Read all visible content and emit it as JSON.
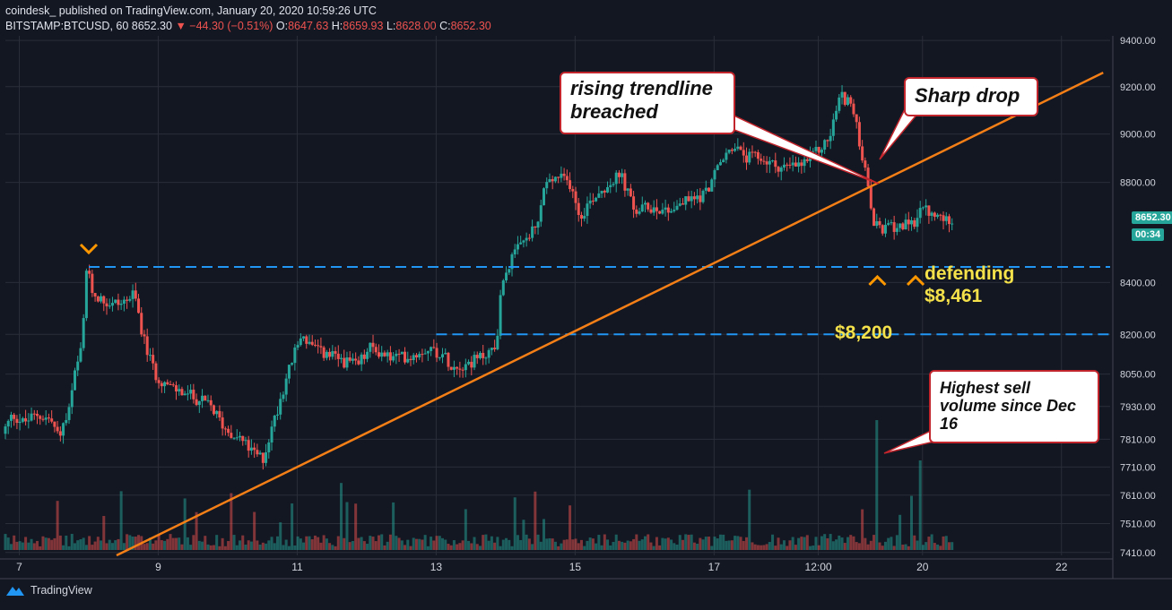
{
  "header": {
    "line1": "coindesk_  published on TradingView.com, January 20, 2020 10:59:26 UTC",
    "symbol": "BITSTAMP:BTCUSD, 60",
    "last": "8652.30",
    "change": "▼ −44.30 (−0.51%)",
    "o_label": "O:",
    "o_value": "8647.63",
    "h_label": "H:",
    "h_value": "8659.93",
    "l_label": "L:",
    "l_value": "8628.00",
    "c_label": "C:",
    "c_value": "8652.30"
  },
  "footer": {
    "brand": "TradingView"
  },
  "price_tags": {
    "last": "8652.30",
    "countdown": "00:34"
  },
  "callouts": {
    "trendline": "rising trendline breached",
    "sharp_drop": "Sharp drop",
    "volume": "Highest sell volume since Dec 16"
  },
  "annotations": {
    "defending": "defending",
    "defending_level": "$8,461",
    "support": "$8,200"
  },
  "colors": {
    "background": "#131722",
    "up": "#26a69a",
    "down": "#ef5350",
    "trendline": "#f57f17",
    "level_line": "#2196f3",
    "marker": "#ff9800",
    "annotation": "#f5e24a"
  },
  "chart_data": {
    "type": "candlestick",
    "y_tick_labels": [
      "9400.00",
      "9200.00",
      "9000.00",
      "8800.00",
      "8400.00",
      "8200.00",
      "8050.00",
      "7930.00",
      "7810.00",
      "7710.00",
      "7610.00",
      "7510.00",
      "7410.00"
    ],
    "y_tick_values": [
      9400,
      9200,
      9000,
      8800,
      8400,
      8200,
      8050,
      7930,
      7810,
      7710,
      7610,
      7510,
      7410
    ],
    "x_tick_labels": [
      "7",
      "9",
      "11",
      "13",
      "15",
      "17",
      "12:00",
      "20",
      "22"
    ],
    "x_tick_days": [
      7,
      9,
      11,
      13,
      15,
      17,
      18.5,
      20,
      22
    ],
    "x_range": [
      6.8,
      22.7
    ],
    "y_scale": "log",
    "y_range": [
      7400,
      9420
    ],
    "grid": true,
    "price_path": [
      [
        6.8,
        7830
      ],
      [
        6.95,
        7900
      ],
      [
        7.1,
        7870
      ],
      [
        7.3,
        7900
      ],
      [
        7.5,
        7880
      ],
      [
        7.6,
        7820
      ],
      [
        7.75,
        7900
      ],
      [
        7.85,
        8060
      ],
      [
        7.95,
        8150
      ],
      [
        8.0,
        8461
      ],
      [
        8.1,
        8360
      ],
      [
        8.3,
        8320
      ],
      [
        8.5,
        8320
      ],
      [
        8.7,
        8350
      ],
      [
        8.85,
        8160
      ],
      [
        9.0,
        8050
      ],
      [
        9.2,
        8000
      ],
      [
        9.5,
        7970
      ],
      [
        9.8,
        7930
      ],
      [
        10.0,
        7850
      ],
      [
        10.2,
        7820
      ],
      [
        10.4,
        7760
      ],
      [
        10.55,
        7740
      ],
      [
        10.7,
        7870
      ],
      [
        10.9,
        8050
      ],
      [
        11.1,
        8200
      ],
      [
        11.3,
        8140
      ],
      [
        11.6,
        8110
      ],
      [
        11.9,
        8080
      ],
      [
        12.1,
        8150
      ],
      [
        12.4,
        8110
      ],
      [
        12.7,
        8120
      ],
      [
        12.9,
        8150
      ],
      [
        13.1,
        8130
      ],
      [
        13.3,
        8080
      ],
      [
        13.6,
        8100
      ],
      [
        13.9,
        8150
      ],
      [
        14.0,
        8420
      ],
      [
        14.15,
        8500
      ],
      [
        14.3,
        8560
      ],
      [
        14.5,
        8620
      ],
      [
        14.6,
        8790
      ],
      [
        14.8,
        8820
      ],
      [
        15.0,
        8790
      ],
      [
        15.1,
        8660
      ],
      [
        15.3,
        8740
      ],
      [
        15.5,
        8790
      ],
      [
        15.7,
        8830
      ],
      [
        15.9,
        8680
      ],
      [
        16.1,
        8700
      ],
      [
        16.4,
        8690
      ],
      [
        16.6,
        8720
      ],
      [
        16.9,
        8750
      ],
      [
        17.1,
        8860
      ],
      [
        17.3,
        8950
      ],
      [
        17.5,
        8900
      ],
      [
        17.7,
        8900
      ],
      [
        17.9,
        8870
      ],
      [
        18.1,
        8860
      ],
      [
        18.3,
        8870
      ],
      [
        18.5,
        8920
      ],
      [
        18.7,
        8980
      ],
      [
        18.85,
        9160
      ],
      [
        19.0,
        9140
      ],
      [
        19.15,
        8950
      ],
      [
        19.25,
        8780
      ],
      [
        19.35,
        8620
      ],
      [
        19.5,
        8610
      ],
      [
        19.7,
        8630
      ],
      [
        19.9,
        8620
      ],
      [
        20.0,
        8700
      ],
      [
        20.15,
        8670
      ],
      [
        20.3,
        8650
      ],
      [
        20.45,
        8652.3
      ]
    ],
    "volume_spike_days": [
      19.35,
      19.95
    ],
    "horizontal_levels": [
      {
        "price": 8461,
        "from_day": 8.0
      },
      {
        "price": 8200,
        "from_day": 13.0
      }
    ],
    "trendline": {
      "from": [
        8.4,
        7400
      ],
      "to": [
        22.6,
        9260
      ]
    },
    "down_markers": [
      8.0
    ],
    "up_markers": [
      19.35,
      19.9
    ],
    "current_price": 8652.3
  }
}
